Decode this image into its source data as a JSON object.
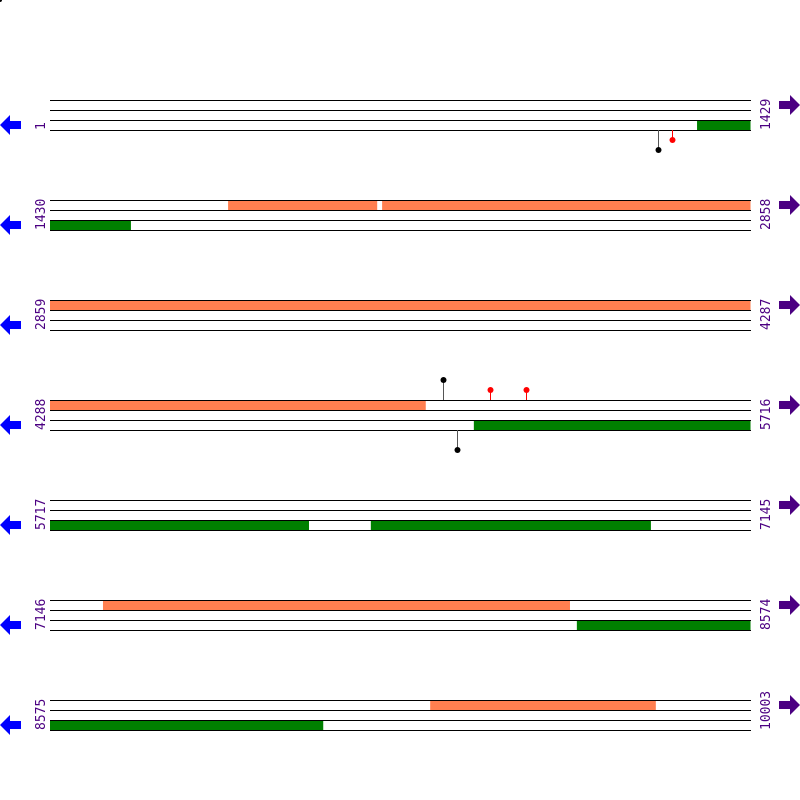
{
  "colors": {
    "forward_feature": "#ff7f50",
    "reverse_feature": "#008000",
    "left_arrow": "#0000ff",
    "right_arrow": "#4b0082",
    "label": "#4b0082",
    "marker_red": "#ff0000",
    "marker_black": "#000000"
  },
  "icons": {
    "left": "arrow-left-icon",
    "right": "arrow-right-icon"
  },
  "row_length": 1429,
  "rows": [
    {
      "start": "1",
      "end": "1429",
      "s": 1,
      "features": [
        {
          "strand": "rev",
          "from": 1320,
          "to": 1429
        }
      ],
      "markers": [
        {
          "pos": 1240,
          "side": "below",
          "len": 2,
          "color": "black"
        },
        {
          "pos": 1269,
          "side": "below",
          "len": 1,
          "color": "red"
        }
      ]
    },
    {
      "start": "1430",
      "end": "2858",
      "s": 1430,
      "features": [
        {
          "strand": "fwd",
          "from": 1793,
          "to": 2097
        },
        {
          "strand": "fwd",
          "from": 2107,
          "to": 2858
        },
        {
          "strand": "rev",
          "from": 1430,
          "to": 1595
        }
      ],
      "markers": []
    },
    {
      "start": "2859",
      "end": "4287",
      "s": 2859,
      "features": [
        {
          "strand": "fwd",
          "from": 2859,
          "to": 4287
        }
      ],
      "markers": []
    },
    {
      "start": "4288",
      "end": "5716",
      "s": 4288,
      "features": [
        {
          "strand": "fwd",
          "from": 4288,
          "to": 5054
        },
        {
          "strand": "rev",
          "from": 5152,
          "to": 5716
        }
      ],
      "markers": [
        {
          "pos": 5089,
          "side": "above",
          "len": 2,
          "color": "black"
        },
        {
          "pos": 5185,
          "side": "above",
          "len": 1,
          "color": "red"
        },
        {
          "pos": 5258,
          "side": "above",
          "len": 1,
          "color": "red"
        },
        {
          "pos": 5118,
          "side": "below",
          "len": 2,
          "color": "black"
        }
      ]
    },
    {
      "start": "5717",
      "end": "7145",
      "s": 5717,
      "features": [
        {
          "strand": "rev",
          "from": 5717,
          "to": 6245
        },
        {
          "strand": "rev",
          "from": 6371,
          "to": 6942
        }
      ],
      "markers": []
    },
    {
      "start": "7146",
      "end": "8574",
      "s": 7146,
      "features": [
        {
          "strand": "fwd",
          "from": 7254,
          "to": 8206
        },
        {
          "strand": "rev",
          "from": 8220,
          "to": 8574
        }
      ],
      "markers": []
    },
    {
      "start": "8575",
      "end": "10003",
      "s": 8575,
      "features": [
        {
          "strand": "fwd",
          "from": 9350,
          "to": 9810
        },
        {
          "strand": "rev",
          "from": 8575,
          "to": 9132
        }
      ],
      "markers": []
    }
  ]
}
